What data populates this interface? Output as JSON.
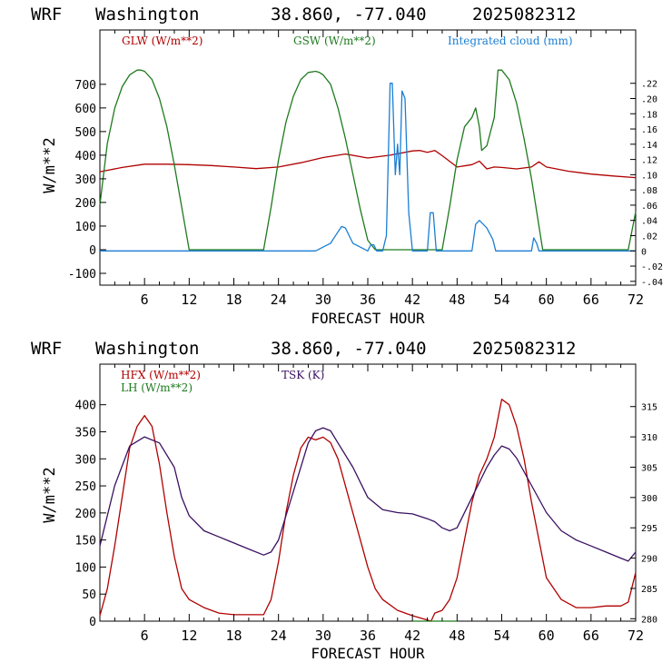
{
  "header": {
    "model": "WRF",
    "location": "Washington",
    "coords": "38.860, -77.040",
    "init": "2025082312"
  },
  "colors": {
    "red": "#b00000",
    "green": "#1e7a1e",
    "blue": "#1a7fd4",
    "purple": "#3a1060"
  },
  "chart_data": [
    {
      "type": "line",
      "xlabel": "FORECAST HOUR",
      "ylabel": "W/m**2",
      "xlim": [
        0,
        72
      ],
      "ylim": [
        -150,
        930
      ],
      "y2lim": [
        -0.045,
        0.29
      ],
      "xticks": [
        6,
        12,
        18,
        24,
        30,
        36,
        42,
        48,
        54,
        60,
        66,
        72
      ],
      "yticks": [
        -100,
        0,
        100,
        200,
        300,
        400,
        500,
        600,
        700
      ],
      "y2ticks": [
        "-.04",
        "-.02",
        "0",
        ".02",
        ".04",
        ".06",
        ".08",
        ".10",
        ".12",
        ".14",
        ".16",
        ".18",
        ".20",
        ".22"
      ],
      "y2tick_values": [
        -0.04,
        -0.02,
        0,
        0.02,
        0.04,
        0.06,
        0.08,
        0.1,
        0.12,
        0.14,
        0.16,
        0.18,
        0.2,
        0.22
      ],
      "series": [
        {
          "name": "GLW (W/m**2)",
          "axis": "left",
          "color": "#b00000",
          "x": [
            0,
            3,
            6,
            9,
            12,
            15,
            18,
            21,
            24,
            27,
            30,
            33,
            36,
            39,
            42,
            43,
            44,
            45,
            46,
            48,
            50,
            51,
            52,
            53,
            54,
            56,
            58,
            59,
            60,
            63,
            66,
            69,
            72
          ],
          "y": [
            330,
            348,
            362,
            362,
            360,
            356,
            350,
            343,
            350,
            368,
            390,
            405,
            388,
            400,
            418,
            420,
            412,
            420,
            398,
            350,
            360,
            375,
            342,
            350,
            348,
            342,
            350,
            372,
            350,
            332,
            320,
            312,
            305
          ]
        },
        {
          "name": "GSW (W/m**2)",
          "axis": "left",
          "color": "#1e7a1e",
          "x": [
            0,
            1,
            2,
            3,
            4,
            5,
            5.5,
            6,
            7,
            8,
            9,
            10,
            11,
            12,
            22,
            23,
            24,
            25,
            26,
            27,
            28,
            29,
            29.5,
            30,
            31,
            32,
            33,
            34,
            35,
            36,
            37,
            46,
            47,
            48,
            49,
            50,
            50.5,
            51,
            51.3,
            52,
            53,
            53.5,
            54,
            55,
            56,
            57,
            58,
            59,
            59.5,
            71,
            72
          ],
          "y": [
            190,
            450,
            600,
            690,
            740,
            760,
            760,
            755,
            720,
            640,
            520,
            360,
            180,
            0,
            0,
            180,
            380,
            540,
            650,
            720,
            750,
            755,
            750,
            740,
            700,
            600,
            470,
            320,
            170,
            40,
            0,
            0,
            180,
            380,
            520,
            560,
            600,
            520,
            420,
            440,
            560,
            760,
            760,
            720,
            620,
            470,
            300,
            100,
            0,
            0,
            160
          ]
        },
        {
          "name": "Integrated cloud (mm)",
          "axis": "right",
          "color": "#1a7fd4",
          "x": [
            0,
            29,
            30,
            31,
            32,
            32.5,
            33,
            34,
            36,
            36.4,
            36.8,
            37.2,
            38,
            38.5,
            39,
            39.3,
            39.7,
            40,
            40.3,
            40.6,
            41,
            41.5,
            42,
            44,
            44.4,
            44.8,
            45.2,
            46,
            50,
            50.5,
            51,
            52,
            52.8,
            53.2,
            58,
            58.3,
            58.7,
            59,
            72
          ],
          "y": [
            0,
            0,
            0.005,
            0.01,
            0.025,
            0.032,
            0.03,
            0.01,
            0,
            0.008,
            0.008,
            0,
            0,
            0.02,
            0.22,
            0.22,
            0.1,
            0.14,
            0.1,
            0.21,
            0.2,
            0.05,
            0,
            0,
            0.05,
            0.05,
            0,
            0,
            0,
            0.035,
            0.04,
            0.03,
            0.015,
            0,
            0,
            0.017,
            0.01,
            0,
            0
          ]
        }
      ]
    },
    {
      "type": "line",
      "xlabel": "FORECAST HOUR",
      "ylabel": "W/m**2",
      "xlim": [
        0,
        72
      ],
      "ylim": [
        0,
        475
      ],
      "y2lim": [
        279.6,
        322
      ],
      "xticks": [
        6,
        12,
        18,
        24,
        30,
        36,
        42,
        48,
        54,
        60,
        66,
        72
      ],
      "yticks": [
        0,
        50,
        100,
        150,
        200,
        250,
        300,
        350,
        400
      ],
      "y2ticks": [
        280,
        285,
        290,
        295,
        300,
        305,
        310,
        315
      ],
      "series": [
        {
          "name": "HFX (W/m**2)",
          "axis": "left",
          "color": "#b00000",
          "x": [
            0,
            1,
            2,
            3,
            4,
            5,
            6,
            7,
            8,
            9,
            10,
            11,
            12,
            14,
            16,
            18,
            20,
            22,
            23,
            24,
            25,
            26,
            27,
            28,
            29,
            30,
            31,
            32,
            33,
            34,
            35,
            36,
            37,
            38,
            40,
            42,
            44,
            44.5,
            45,
            46,
            47,
            48,
            49,
            50,
            51,
            52,
            53,
            54,
            55,
            56,
            57,
            58,
            59,
            60,
            62,
            64,
            66,
            68,
            70,
            71,
            72
          ],
          "y": [
            10,
            60,
            140,
            230,
            320,
            360,
            380,
            360,
            290,
            200,
            120,
            60,
            40,
            25,
            15,
            12,
            12,
            12,
            40,
            110,
            200,
            270,
            320,
            340,
            335,
            340,
            330,
            300,
            250,
            200,
            150,
            100,
            60,
            40,
            20,
            10,
            2,
            0,
            15,
            20,
            40,
            80,
            150,
            220,
            270,
            300,
            340,
            410,
            400,
            360,
            300,
            220,
            150,
            80,
            40,
            25,
            25,
            28,
            28,
            35,
            90
          ]
        },
        {
          "name": "LH (W/m**2)",
          "axis": "left",
          "color": "#1e7a1e",
          "x": [
            42,
            43,
            44,
            45,
            46,
            47,
            48
          ],
          "y": [
            0,
            0,
            0,
            0,
            0,
            0,
            0
          ]
        },
        {
          "name": "TSK (K)",
          "axis": "right",
          "color": "#3a1060",
          "x": [
            0,
            2,
            4,
            6,
            8,
            10,
            11,
            12,
            14,
            16,
            18,
            20,
            22,
            23,
            24,
            26,
            28,
            29,
            30,
            31,
            32,
            34,
            36,
            38,
            40,
            42,
            44,
            45,
            46,
            47,
            48,
            50,
            52,
            53,
            54,
            55,
            56,
            58,
            60,
            62,
            64,
            66,
            68,
            70,
            71,
            72
          ],
          "y": [
            292,
            302,
            308.5,
            310,
            309,
            305,
            300,
            297,
            294.5,
            293.5,
            292.5,
            291.5,
            290.5,
            291,
            293,
            301,
            309,
            311,
            311.5,
            311,
            309,
            305,
            300,
            298,
            297.5,
            297.3,
            296.5,
            296,
            295,
            294.5,
            295,
            300,
            305,
            307,
            308.5,
            308,
            306.5,
            302,
            297.5,
            294.5,
            293,
            292,
            291,
            290,
            289.5,
            291
          ]
        }
      ]
    }
  ]
}
